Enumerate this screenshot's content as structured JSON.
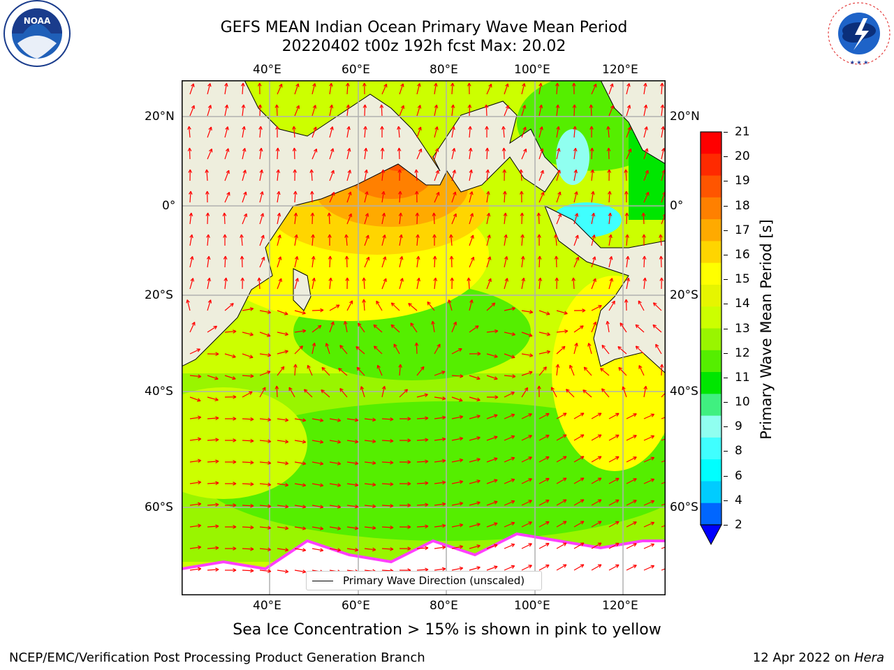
{
  "header": {
    "title_line1": "GEFS MEAN Indian Ocean Primary Wave Mean Period",
    "title_line2": "20220402 t00z 192h fcst   Max: 20.02"
  },
  "logos": {
    "noaa_text": "NOAA",
    "noaa_ring_text": "NATIONAL OCEANIC AND ATMOSPHERIC ADMINISTRATION · U.S. DEPARTMENT OF COMMERCE",
    "nws_ring_text": "NATIONAL WEATHER SERVICE"
  },
  "map": {
    "top_lon_labels": [
      "40°E",
      "60°E",
      "80°E",
      "100°E",
      "120°E"
    ],
    "bottom_lon_labels": [
      "40°E",
      "60°E",
      "80°E",
      "100°E",
      "120°E"
    ],
    "left_lat_labels": [
      "20°N",
      "0°",
      "20°S",
      "40°S",
      "60°S"
    ],
    "right_lat_labels": [
      "20°N",
      "0°",
      "20°S",
      "40°S",
      "60°S"
    ],
    "legend_label": "Primary Wave Direction (unscaled)",
    "ice_note": "Sea Ice Concentration > 15% is shown in pink to yellow",
    "colors": {
      "land": "#eeeedd",
      "ice": "#ffffff",
      "arrow": "#ff0000",
      "grid": "#b0b0b0"
    }
  },
  "colorbar": {
    "label": "Primary Wave Mean Period [s]",
    "ticks": [
      "21",
      "20",
      "19",
      "18",
      "17",
      "16",
      "15",
      "14",
      "13",
      "12",
      "11",
      "10",
      "9",
      "8",
      "6",
      "4",
      "2"
    ],
    "colors": [
      "#ff0000",
      "#ff2a00",
      "#ff5500",
      "#ff8000",
      "#ffaa00",
      "#ffd500",
      "#ffff00",
      "#e6f500",
      "#ccff00",
      "#99f500",
      "#55ee00",
      "#00e600",
      "#40f080",
      "#90fff0",
      "#40ffff",
      "#00ffff",
      "#00ccff",
      "#0066ff"
    ],
    "extend_color": "#0000ff"
  },
  "footer": {
    "left": "NCEP/EMC/Verification Post Processing Product Generation Branch",
    "right_prefix": "12 Apr 2022 on ",
    "right_machine": "Hera"
  }
}
